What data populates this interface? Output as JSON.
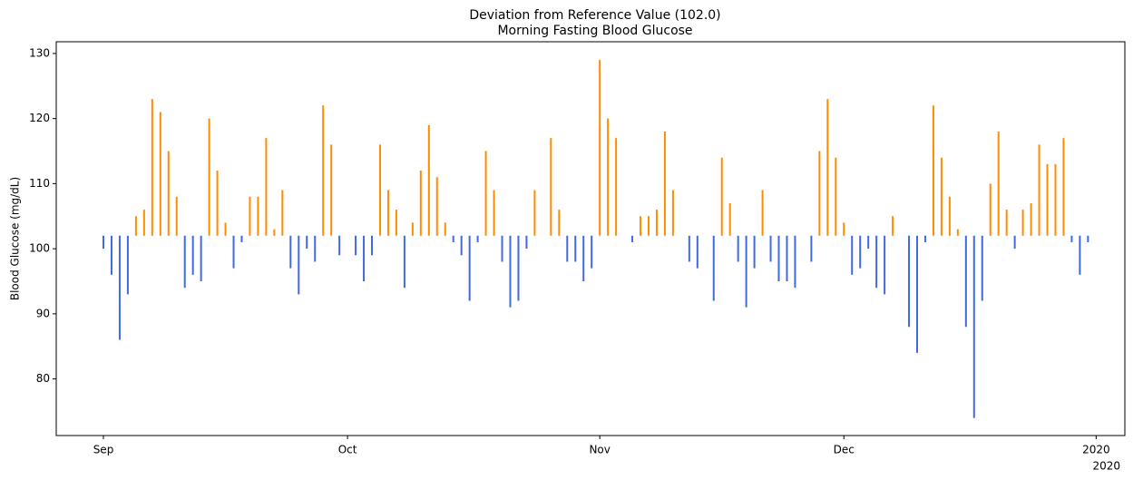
{
  "chart_data": {
    "type": "bar",
    "title": "Deviation from Reference Value (102.0)",
    "subtitle": "Morning Fasting Blood Glucose",
    "y_label": "Blood Glucose (mg/dL)",
    "x_offset_label": "2020",
    "reference": 102,
    "above_color": "#ff8c00",
    "below_color": "#4169e1",
    "ylim": [
      71.3,
      131.8
    ],
    "yticks": [
      80,
      90,
      100,
      110,
      120,
      130
    ],
    "categories": [
      "Sep",
      null,
      null,
      null,
      null,
      null,
      null,
      null,
      null,
      null,
      null,
      null,
      null,
      null,
      null,
      null,
      null,
      null,
      null,
      null,
      null,
      null,
      null,
      null,
      null,
      null,
      null,
      null,
      null,
      null,
      "Oct",
      null,
      null,
      null,
      null,
      null,
      null,
      null,
      null,
      null,
      null,
      null,
      null,
      null,
      null,
      null,
      null,
      null,
      null,
      null,
      null,
      null,
      null,
      null,
      null,
      null,
      null,
      null,
      null,
      null,
      null,
      "Nov",
      null,
      null,
      null,
      null,
      null,
      null,
      null,
      null,
      null,
      null,
      null,
      null,
      null,
      null,
      null,
      null,
      null,
      null,
      null,
      null,
      null,
      null,
      null,
      null,
      null,
      null,
      null,
      null,
      null,
      "Dec",
      null,
      null,
      null,
      null,
      null,
      null,
      null,
      null,
      null,
      null,
      null,
      null,
      null,
      null,
      null,
      null,
      null,
      null,
      null,
      null,
      null,
      null,
      null,
      null,
      null,
      null,
      null,
      null,
      null,
      null,
      "2020"
    ],
    "values": [
      100,
      96,
      86,
      93,
      105,
      106,
      123,
      121,
      115,
      108,
      94,
      96,
      95,
      120,
      112,
      104,
      97,
      101,
      108,
      108,
      117,
      103,
      109,
      97,
      93,
      100,
      98,
      122,
      116,
      99,
      null,
      99,
      95,
      99,
      116,
      109,
      106,
      94,
      104,
      112,
      119,
      111,
      104,
      101,
      99,
      92,
      101,
      115,
      109,
      98,
      91,
      92,
      100,
      109,
      null,
      117,
      106,
      98,
      98,
      95,
      97,
      129,
      120,
      117,
      null,
      101,
      105,
      105,
      106,
      118,
      109,
      null,
      98,
      97,
      null,
      92,
      114,
      107,
      98,
      91,
      97,
      109,
      98,
      95,
      95,
      94,
      null,
      98,
      115,
      123,
      114,
      104,
      96,
      97,
      100,
      94,
      93,
      105,
      null,
      88,
      84,
      101,
      122,
      114,
      108,
      103,
      88,
      74,
      92,
      110,
      118,
      106,
      100,
      106,
      107,
      116,
      113,
      113,
      117,
      101,
      96,
      101,
      null
    ]
  }
}
